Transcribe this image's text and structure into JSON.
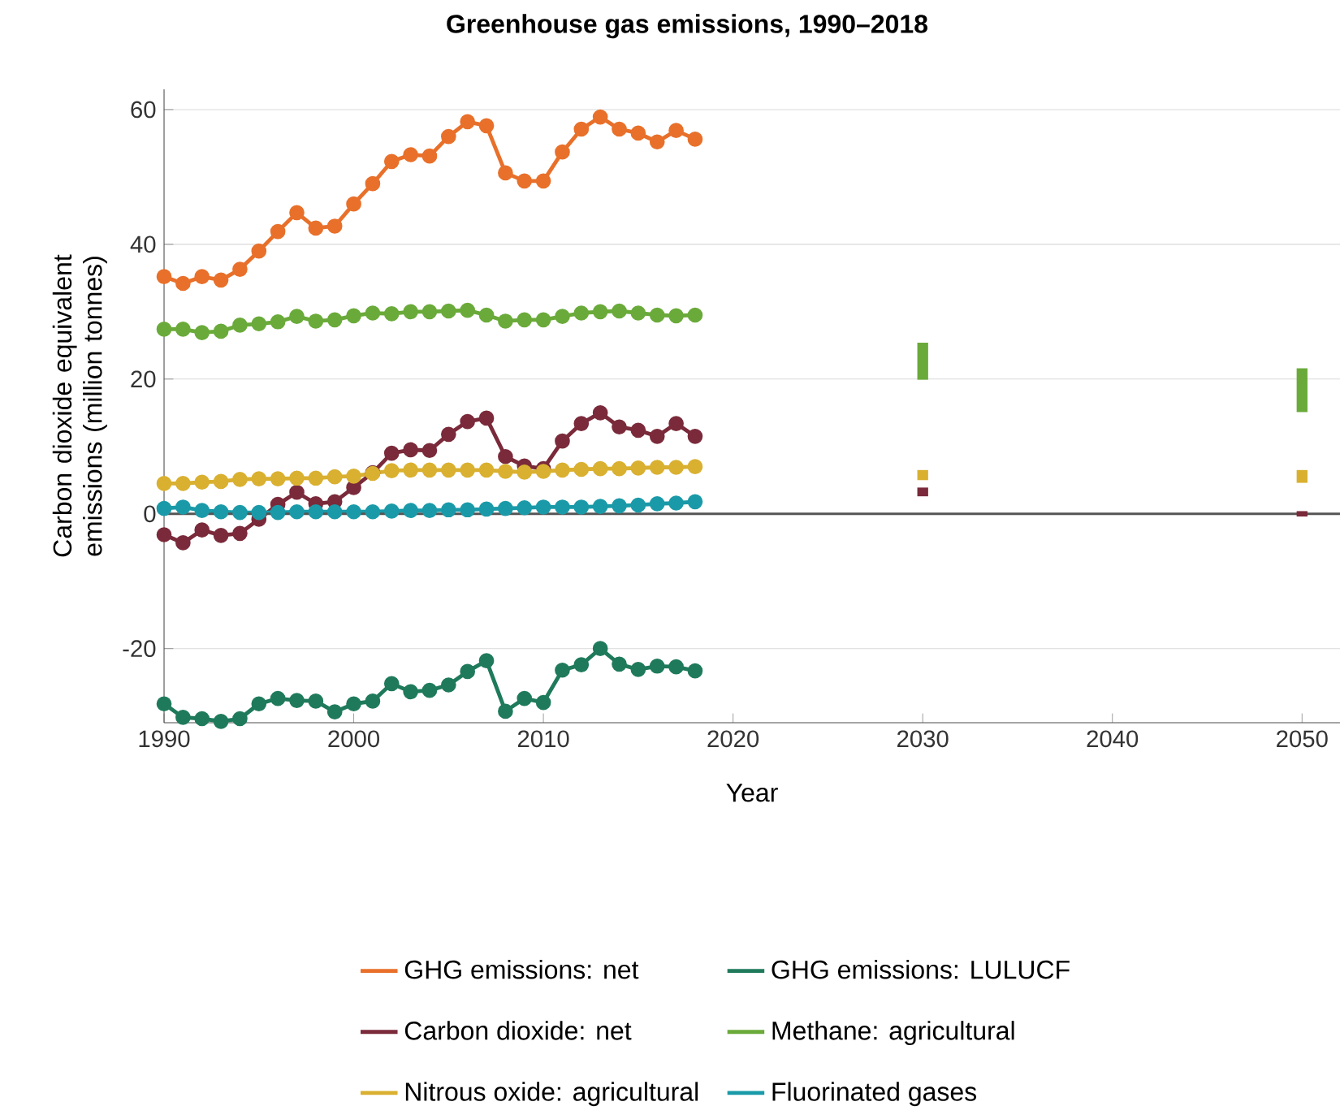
{
  "chart_data": {
    "type": "line",
    "title": "Greenhouse gas emissions, 1990–2018",
    "xlabel": "Year",
    "ylabel": "Carbon dioxide equivalent emissions (million tonnes)",
    "x": [
      1990,
      1991,
      1992,
      1993,
      1994,
      1995,
      1996,
      1997,
      1998,
      1999,
      2000,
      2001,
      2002,
      2003,
      2004,
      2005,
      2006,
      2007,
      2008,
      2009,
      2010,
      2011,
      2012,
      2013,
      2014,
      2015,
      2016,
      2017,
      2018,
      2030,
      2050
    ],
    "series": [
      {
        "name": "GHG emissions: net",
        "color": "#e8702a",
        "values": [
          35.2,
          34.2,
          35.2,
          34.7,
          36.3,
          39.0,
          41.9,
          44.7,
          42.4,
          42.7,
          46.0,
          49.0,
          52.3,
          53.3,
          53.1,
          56.0,
          58.2,
          57.6,
          50.6,
          49.4,
          49.4,
          53.7,
          57.1,
          58.9,
          57.1,
          56.5,
          55.2,
          56.9,
          55.6,
          null,
          null
        ]
      },
      {
        "name": "GHG emissions: LULUCF",
        "color": "#1f7a5c",
        "values": [
          -28.2,
          -30.2,
          -30.4,
          -30.8,
          -30.4,
          -28.2,
          -27.4,
          -27.7,
          -27.8,
          -29.4,
          -28.2,
          -27.8,
          -25.2,
          -26.4,
          -26.2,
          -25.4,
          -23.4,
          -21.8,
          -29.3,
          -27.4,
          -28.0,
          -23.2,
          -22.4,
          -20.0,
          -22.3,
          -23.1,
          -22.6,
          -22.7,
          -23.3,
          null,
          null
        ]
      },
      {
        "name": "Carbon dioxide: net",
        "color": "#7a2a3a",
        "values": [
          -3.1,
          -4.3,
          -2.4,
          -3.2,
          -2.9,
          -0.8,
          1.4,
          3.2,
          1.5,
          1.8,
          3.9,
          6.1,
          9.0,
          9.5,
          9.4,
          11.8,
          13.7,
          14.2,
          8.5,
          7.1,
          6.7,
          10.8,
          13.4,
          15.0,
          12.9,
          12.4,
          11.5,
          13.4,
          11.5,
          null,
          null
        ]
      },
      {
        "name": "Methane: agricultural",
        "color": "#6aaa3a",
        "values": [
          27.4,
          27.4,
          26.9,
          27.1,
          28.0,
          28.2,
          28.5,
          29.3,
          28.6,
          28.8,
          29.4,
          29.8,
          29.7,
          30.0,
          30.0,
          30.1,
          30.2,
          29.5,
          28.6,
          28.8,
          28.8,
          29.3,
          29.8,
          30.0,
          30.1,
          29.8,
          29.5,
          29.4,
          29.5,
          null,
          null
        ]
      },
      {
        "name": "Nitrous oxide: agricultural",
        "color": "#d9b030",
        "values": [
          4.5,
          4.5,
          4.7,
          4.8,
          5.1,
          5.2,
          5.2,
          5.3,
          5.3,
          5.5,
          5.6,
          6.0,
          6.4,
          6.5,
          6.5,
          6.5,
          6.5,
          6.5,
          6.3,
          6.2,
          6.3,
          6.5,
          6.6,
          6.7,
          6.7,
          6.8,
          6.9,
          6.9,
          7.0,
          null,
          null
        ]
      },
      {
        "name": "Fluorinated gases",
        "color": "#1a9aa8",
        "values": [
          0.8,
          1.0,
          0.5,
          0.3,
          0.2,
          0.2,
          0.2,
          0.3,
          0.3,
          0.3,
          0.3,
          0.3,
          0.4,
          0.5,
          0.5,
          0.6,
          0.6,
          0.7,
          0.8,
          0.9,
          1.0,
          1.0,
          1.0,
          1.1,
          1.2,
          1.3,
          1.5,
          1.6,
          1.8,
          null,
          null
        ]
      },
      {
        "type": "bar",
        "color": "#7a2a3a",
        "base": [
          null,
          null,
          null,
          null,
          null,
          null,
          null,
          null,
          null,
          null,
          null,
          null,
          null,
          null,
          null,
          null,
          null,
          null,
          null,
          null,
          null,
          null,
          null,
          null,
          null,
          null,
          null,
          null,
          null,
          2.6,
          -0.4
        ],
        "values": [
          null,
          null,
          null,
          null,
          null,
          null,
          null,
          null,
          null,
          null,
          null,
          null,
          null,
          null,
          null,
          null,
          null,
          null,
          null,
          null,
          null,
          null,
          null,
          null,
          null,
          null,
          null,
          null,
          null,
          1.3,
          0.8
        ]
      },
      {
        "type": "bar",
        "color": "#6aaa3a",
        "base": [
          null,
          null,
          null,
          null,
          null,
          null,
          null,
          null,
          null,
          null,
          null,
          null,
          null,
          null,
          null,
          null,
          null,
          null,
          null,
          null,
          null,
          null,
          null,
          null,
          null,
          null,
          null,
          null,
          null,
          19.9,
          15.1
        ],
        "values": [
          null,
          null,
          null,
          null,
          null,
          null,
          null,
          null,
          null,
          null,
          null,
          null,
          null,
          null,
          null,
          null,
          null,
          null,
          null,
          null,
          null,
          null,
          null,
          null,
          null,
          null,
          null,
          null,
          null,
          5.5,
          6.5
        ]
      },
      {
        "type": "bar",
        "color": "#d9b030",
        "base": [
          null,
          null,
          null,
          null,
          null,
          null,
          null,
          null,
          null,
          null,
          null,
          null,
          null,
          null,
          null,
          null,
          null,
          null,
          null,
          null,
          null,
          null,
          null,
          null,
          null,
          null,
          null,
          null,
          null,
          5.0,
          4.6
        ],
        "values": [
          null,
          null,
          null,
          null,
          null,
          null,
          null,
          null,
          null,
          null,
          null,
          null,
          null,
          null,
          null,
          null,
          null,
          null,
          null,
          null,
          null,
          null,
          null,
          null,
          null,
          null,
          null,
          null,
          null,
          1.5,
          1.9
        ]
      }
    ],
    "xlim": [
      1990,
      2052
    ],
    "xticks": [
      1990,
      2000,
      2010,
      2020,
      2030,
      2040,
      2050
    ],
    "ylim": [
      -31,
      63
    ],
    "yticks": [
      -20,
      0,
      20,
      40,
      60
    ],
    "ref_lines": [
      {
        "axis": "y",
        "value": 0,
        "color": "#555555"
      }
    ],
    "grid": "y",
    "legend": "bottom",
    "marker": "circle",
    "line_style": "solid"
  }
}
